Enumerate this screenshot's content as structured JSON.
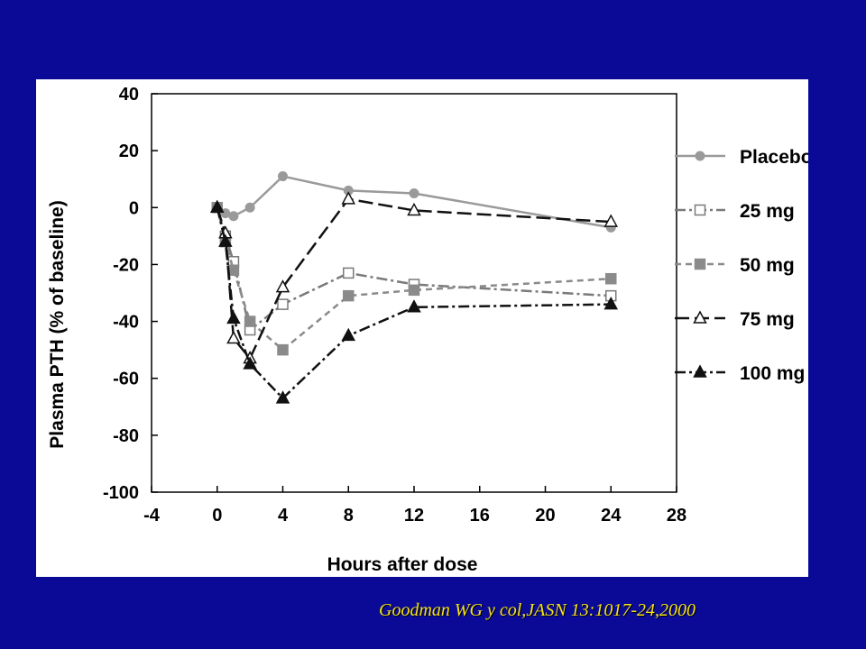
{
  "colors": {
    "slide_background": "#0a0a96",
    "panel_background": "#ffffff",
    "citation_text": "#f5e21a"
  },
  "citation": "Goodman WG y col,JASN 13:1017-24,2000",
  "chart_data": {
    "type": "line",
    "title": "",
    "xlabel": "Hours after dose",
    "ylabel": "Plasma PTH (% of baseline)",
    "xlim": [
      -4,
      28
    ],
    "ylim": [
      -100,
      40
    ],
    "xticks": [
      -4,
      0,
      4,
      8,
      12,
      16,
      20,
      24,
      28
    ],
    "yticks": [
      40,
      20,
      0,
      -20,
      -40,
      -60,
      -80,
      -100
    ],
    "grid": false,
    "legend_position": "right",
    "series": [
      {
        "name": "Placebo",
        "marker": "circle-filled",
        "line_style": "solid",
        "color": "#9a9a9a",
        "x": [
          0,
          0.5,
          1,
          2,
          4,
          8,
          12,
          24
        ],
        "y": [
          0,
          -2,
          -3,
          0,
          11,
          6,
          5,
          -7
        ]
      },
      {
        "name": "25 mg",
        "marker": "square-open",
        "line_style": "dashdot",
        "color": "#7a7a7a",
        "x": [
          0,
          0.5,
          1,
          2,
          4,
          8,
          12,
          24
        ],
        "y": [
          0,
          -10,
          -19,
          -43,
          -34,
          -23,
          -27,
          -31
        ]
      },
      {
        "name": "50 mg",
        "marker": "square-filled",
        "line_style": "dashed",
        "color": "#8a8a8a",
        "x": [
          0,
          0.5,
          1,
          2,
          4,
          8,
          12,
          24
        ],
        "y": [
          0,
          -12,
          -22,
          -40,
          -50,
          -31,
          -29,
          -25
        ]
      },
      {
        "name": "75 mg",
        "marker": "triangle-open",
        "line_style": "longdash",
        "color": "#111111",
        "x": [
          0,
          0.5,
          1,
          2,
          4,
          8,
          12,
          24
        ],
        "y": [
          0,
          -9,
          -46,
          -53,
          -28,
          3,
          -1,
          -5
        ]
      },
      {
        "name": "100 mg",
        "marker": "triangle-filled",
        "line_style": "dashdot",
        "color": "#111111",
        "x": [
          0,
          0.5,
          1,
          2,
          4,
          8,
          12,
          24
        ],
        "y": [
          0,
          -12,
          -39,
          -55,
          -67,
          -45,
          -35,
          -34
        ]
      }
    ]
  }
}
